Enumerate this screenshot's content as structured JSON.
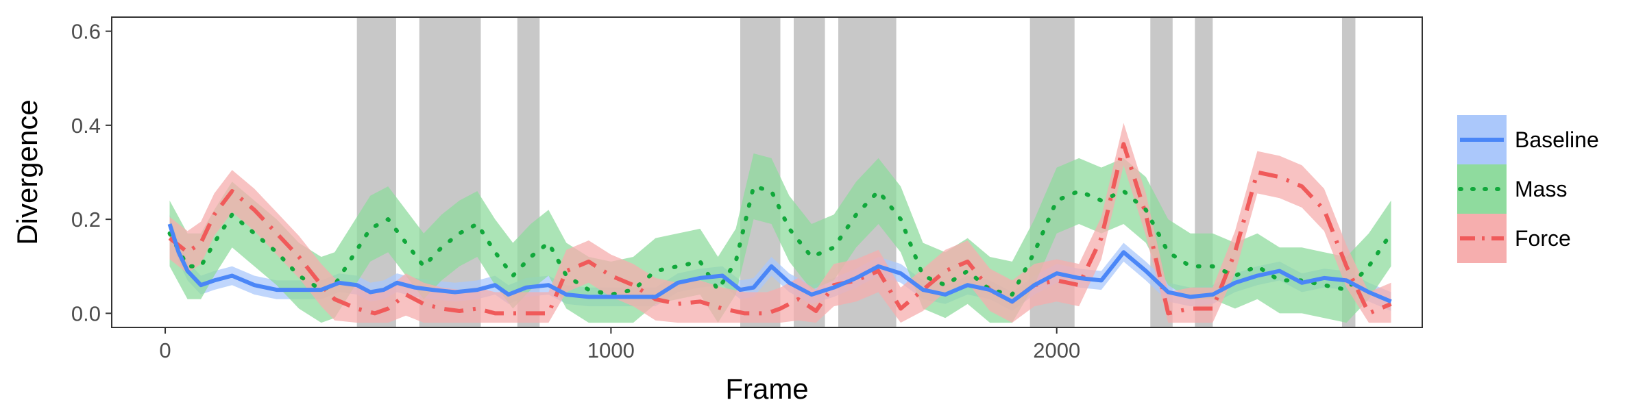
{
  "chart_data": {
    "type": "line",
    "xlabel": "Frame",
    "ylabel": "Divergence",
    "xlim": [
      -120,
      2820
    ],
    "ylim": [
      -0.03,
      0.63
    ],
    "x_ticks": [
      0,
      1000,
      2000
    ],
    "y_ticks": [
      0.0,
      0.2,
      0.4,
      0.6
    ],
    "x_tick_labels": [
      "0",
      "1000",
      "2000"
    ],
    "y_tick_labels": [
      "0.0",
      "0.2",
      "0.4",
      "0.6"
    ],
    "grid": false,
    "legend_position": "right",
    "shaded_regions": [
      [
        430,
        518
      ],
      [
        570,
        708
      ],
      [
        790,
        840
      ],
      [
        1290,
        1380
      ],
      [
        1410,
        1480
      ],
      [
        1510,
        1640
      ],
      [
        1940,
        2040
      ],
      [
        2210,
        2260
      ],
      [
        2310,
        2350
      ],
      [
        2640,
        2670
      ]
    ],
    "shaded_color": "#c8c8c8",
    "series": [
      {
        "name": "Baseline",
        "color": "#4a86f7",
        "band_color": "#abc8fb",
        "line_style": "solid",
        "points": [
          [
            10,
            0.19
          ],
          [
            30,
            0.13
          ],
          [
            50,
            0.09
          ],
          [
            80,
            0.06
          ],
          [
            110,
            0.07
          ],
          [
            150,
            0.08
          ],
          [
            200,
            0.06
          ],
          [
            250,
            0.05
          ],
          [
            300,
            0.05
          ],
          [
            350,
            0.05
          ],
          [
            390,
            0.065
          ],
          [
            430,
            0.06
          ],
          [
            460,
            0.045
          ],
          [
            490,
            0.05
          ],
          [
            520,
            0.065
          ],
          [
            560,
            0.055
          ],
          [
            600,
            0.05
          ],
          [
            650,
            0.045
          ],
          [
            700,
            0.05
          ],
          [
            740,
            0.06
          ],
          [
            770,
            0.04
          ],
          [
            810,
            0.055
          ],
          [
            860,
            0.06
          ],
          [
            900,
            0.04
          ],
          [
            950,
            0.035
          ],
          [
            1000,
            0.035
          ],
          [
            1050,
            0.035
          ],
          [
            1100,
            0.035
          ],
          [
            1150,
            0.065
          ],
          [
            1200,
            0.075
          ],
          [
            1250,
            0.08
          ],
          [
            1290,
            0.05
          ],
          [
            1320,
            0.055
          ],
          [
            1360,
            0.1
          ],
          [
            1400,
            0.065
          ],
          [
            1450,
            0.04
          ],
          [
            1500,
            0.055
          ],
          [
            1550,
            0.075
          ],
          [
            1600,
            0.1
          ],
          [
            1650,
            0.085
          ],
          [
            1700,
            0.05
          ],
          [
            1750,
            0.04
          ],
          [
            1800,
            0.06
          ],
          [
            1850,
            0.05
          ],
          [
            1900,
            0.025
          ],
          [
            1950,
            0.06
          ],
          [
            2000,
            0.085
          ],
          [
            2050,
            0.075
          ],
          [
            2100,
            0.07
          ],
          [
            2150,
            0.13
          ],
          [
            2200,
            0.09
          ],
          [
            2250,
            0.045
          ],
          [
            2300,
            0.035
          ],
          [
            2350,
            0.04
          ],
          [
            2400,
            0.065
          ],
          [
            2450,
            0.08
          ],
          [
            2500,
            0.09
          ],
          [
            2550,
            0.065
          ],
          [
            2600,
            0.075
          ],
          [
            2650,
            0.07
          ],
          [
            2700,
            0.045
          ],
          [
            2750,
            0.025
          ]
        ],
        "band_halfwidth": 0.02
      },
      {
        "name": "Mass",
        "color": "#11a83b",
        "band_color": "#8fdb9e",
        "line_style": "dotted",
        "points": [
          [
            10,
            0.17
          ],
          [
            50,
            0.1
          ],
          [
            80,
            0.1
          ],
          [
            110,
            0.15
          ],
          [
            150,
            0.21
          ],
          [
            200,
            0.17
          ],
          [
            250,
            0.13
          ],
          [
            300,
            0.08
          ],
          [
            350,
            0.05
          ],
          [
            380,
            0.06
          ],
          [
            420,
            0.12
          ],
          [
            460,
            0.18
          ],
          [
            500,
            0.2
          ],
          [
            540,
            0.15
          ],
          [
            580,
            0.1
          ],
          [
            620,
            0.14
          ],
          [
            660,
            0.17
          ],
          [
            700,
            0.19
          ],
          [
            740,
            0.13
          ],
          [
            780,
            0.08
          ],
          [
            820,
            0.12
          ],
          [
            860,
            0.15
          ],
          [
            900,
            0.08
          ],
          [
            950,
            0.05
          ],
          [
            1000,
            0.04
          ],
          [
            1050,
            0.05
          ],
          [
            1100,
            0.09
          ],
          [
            1150,
            0.1
          ],
          [
            1200,
            0.11
          ],
          [
            1240,
            0.05
          ],
          [
            1280,
            0.11
          ],
          [
            1320,
            0.27
          ],
          [
            1360,
            0.26
          ],
          [
            1400,
            0.18
          ],
          [
            1450,
            0.12
          ],
          [
            1500,
            0.14
          ],
          [
            1550,
            0.21
          ],
          [
            1600,
            0.26
          ],
          [
            1650,
            0.2
          ],
          [
            1700,
            0.08
          ],
          [
            1750,
            0.06
          ],
          [
            1800,
            0.09
          ],
          [
            1850,
            0.05
          ],
          [
            1900,
            0.04
          ],
          [
            1950,
            0.13
          ],
          [
            2000,
            0.24
          ],
          [
            2050,
            0.26
          ],
          [
            2100,
            0.24
          ],
          [
            2150,
            0.26
          ],
          [
            2200,
            0.22
          ],
          [
            2250,
            0.13
          ],
          [
            2300,
            0.1
          ],
          [
            2350,
            0.1
          ],
          [
            2400,
            0.08
          ],
          [
            2450,
            0.1
          ],
          [
            2500,
            0.07
          ],
          [
            2550,
            0.07
          ],
          [
            2600,
            0.06
          ],
          [
            2650,
            0.05
          ],
          [
            2700,
            0.1
          ],
          [
            2750,
            0.17
          ]
        ],
        "band_halfwidth": 0.07
      },
      {
        "name": "Force",
        "color": "#f05a5a",
        "band_color": "#f6aeae",
        "line_style": "dashdot",
        "points": [
          [
            10,
            0.16
          ],
          [
            50,
            0.13
          ],
          [
            80,
            0.15
          ],
          [
            110,
            0.21
          ],
          [
            150,
            0.26
          ],
          [
            200,
            0.22
          ],
          [
            250,
            0.17
          ],
          [
            300,
            0.12
          ],
          [
            350,
            0.06
          ],
          [
            380,
            0.03
          ],
          [
            430,
            0.01
          ],
          [
            470,
            0.0
          ],
          [
            500,
            0.01
          ],
          [
            540,
            0.04
          ],
          [
            580,
            0.02
          ],
          [
            620,
            0.01
          ],
          [
            660,
            0.005
          ],
          [
            700,
            0.01
          ],
          [
            740,
            0.0
          ],
          [
            780,
            0.0
          ],
          [
            820,
            0.0
          ],
          [
            860,
            0.0
          ],
          [
            900,
            0.09
          ],
          [
            950,
            0.11
          ],
          [
            1000,
            0.08
          ],
          [
            1050,
            0.06
          ],
          [
            1100,
            0.03
          ],
          [
            1150,
            0.02
          ],
          [
            1200,
            0.025
          ],
          [
            1250,
            0.01
          ],
          [
            1300,
            0.0
          ],
          [
            1350,
            0.0
          ],
          [
            1380,
            0.01
          ],
          [
            1420,
            0.03
          ],
          [
            1460,
            0.005
          ],
          [
            1500,
            0.06
          ],
          [
            1550,
            0.07
          ],
          [
            1600,
            0.09
          ],
          [
            1650,
            0.01
          ],
          [
            1700,
            0.05
          ],
          [
            1750,
            0.09
          ],
          [
            1800,
            0.11
          ],
          [
            1850,
            0.05
          ],
          [
            1900,
            0.025
          ],
          [
            1950,
            0.06
          ],
          [
            2000,
            0.07
          ],
          [
            2050,
            0.06
          ],
          [
            2100,
            0.16
          ],
          [
            2150,
            0.36
          ],
          [
            2200,
            0.21
          ],
          [
            2250,
            0.0
          ],
          [
            2300,
            0.01
          ],
          [
            2350,
            0.01
          ],
          [
            2400,
            0.13
          ],
          [
            2450,
            0.3
          ],
          [
            2500,
            0.29
          ],
          [
            2550,
            0.27
          ],
          [
            2600,
            0.22
          ],
          [
            2650,
            0.1
          ],
          [
            2700,
            0.0
          ],
          [
            2750,
            0.02
          ]
        ],
        "band_halfwidth": 0.045
      }
    ]
  }
}
